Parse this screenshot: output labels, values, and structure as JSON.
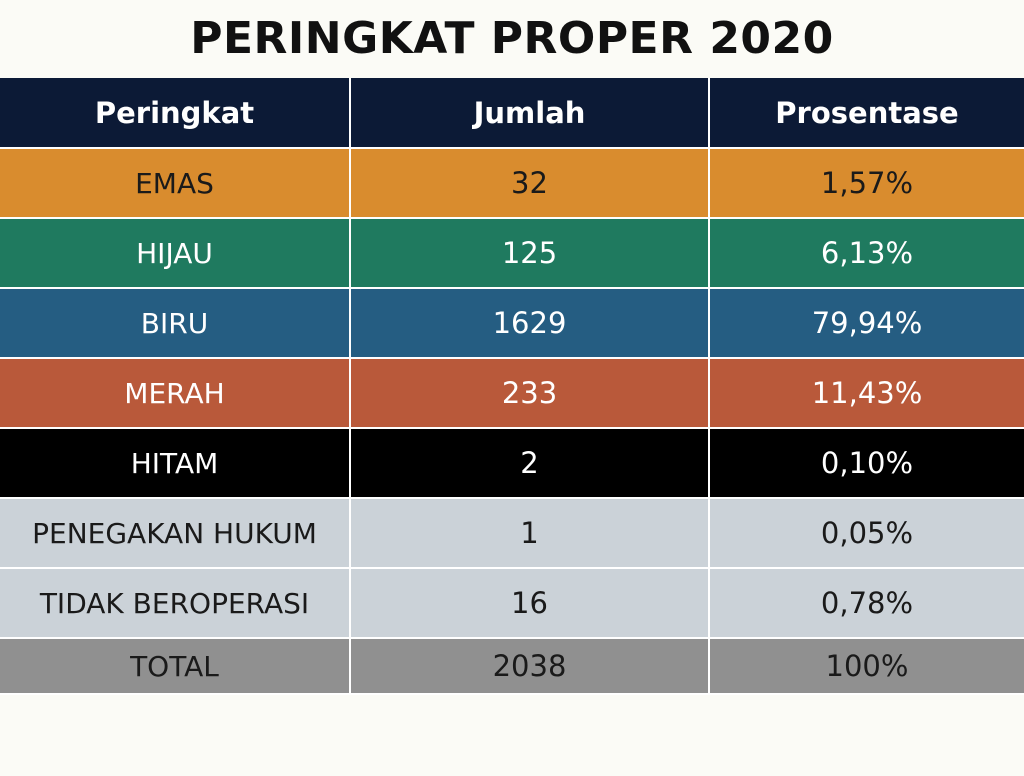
{
  "title": "PERINGKAT PROPER 2020",
  "table": {
    "headers": [
      "Peringkat",
      "Jumlah",
      "Prosentase"
    ],
    "header_bg": "#0c1a36",
    "rows": [
      {
        "peringkat": "EMAS",
        "jumlah": "32",
        "prosentase": "1,57%",
        "bg": "#d98c2e",
        "fg": "#1a1a1a"
      },
      {
        "peringkat": "HIJAU",
        "jumlah": "125",
        "prosentase": "6,13%",
        "bg": "#1f7a5f",
        "fg": "#ffffff"
      },
      {
        "peringkat": "BIRU",
        "jumlah": "1629",
        "prosentase": "79,94%",
        "bg": "#255d82",
        "fg": "#ffffff"
      },
      {
        "peringkat": "MERAH",
        "jumlah": "233",
        "prosentase": "11,43%",
        "bg": "#b9593a",
        "fg": "#ffffff"
      },
      {
        "peringkat": "HITAM",
        "jumlah": "2",
        "prosentase": "0,10%",
        "bg": "#000000",
        "fg": "#ffffff"
      },
      {
        "peringkat": "PENEGAKAN HUKUM",
        "jumlah": "1",
        "prosentase": "0,05%",
        "bg": "#cbd2d8",
        "fg": "#1a1a1a"
      },
      {
        "peringkat": "TIDAK BEROPERASI",
        "jumlah": "16",
        "prosentase": "0,78%",
        "bg": "#cbd2d8",
        "fg": "#1a1a1a"
      }
    ],
    "total": {
      "peringkat": "TOTAL",
      "jumlah": "2038",
      "prosentase": "100%",
      "bg": "#909090",
      "fg": "#1a1a1a"
    }
  }
}
